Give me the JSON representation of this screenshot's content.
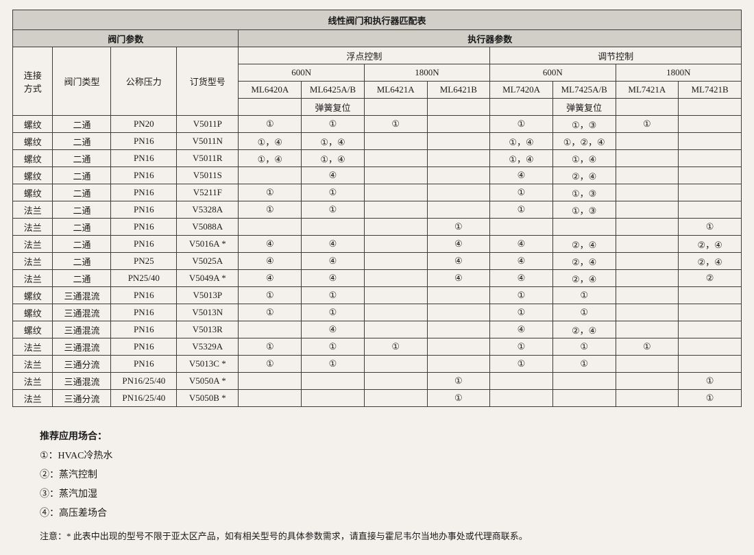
{
  "table": {
    "title": "线性阀门和执行器匹配表",
    "group_left": "阀门参数",
    "group_right": "执行器参数",
    "col_conn": "连接\n方式",
    "col_type": "阀门类型",
    "col_pn": "公称压力",
    "col_order": "订货型号",
    "ctrl_float": "浮点控制",
    "ctrl_mod": "调节控制",
    "n600": "600N",
    "n1800": "1800N",
    "m0": "ML6420A",
    "m1": "ML6425A/B",
    "m2": "ML6421A",
    "m3": "ML6421B",
    "m4": "ML7420A",
    "m5": "ML7425A/B",
    "m6": "ML7421A",
    "m7": "ML7421B",
    "spring": "弹簧复位",
    "rows": [
      {
        "c0": "螺纹",
        "c1": "二通",
        "c2": "PN20",
        "c3": "V5011P",
        "d": [
          "①",
          "①",
          "①",
          "",
          "①",
          "①，③",
          "①",
          ""
        ]
      },
      {
        "c0": "螺纹",
        "c1": "二通",
        "c2": "PN16",
        "c3": "V5011N",
        "d": [
          "①，④",
          "①，④",
          "",
          "",
          "①，④",
          "①，②，④",
          "",
          ""
        ]
      },
      {
        "c0": "螺纹",
        "c1": "二通",
        "c2": "PN16",
        "c3": "V5011R",
        "d": [
          "①，④",
          "①，④",
          "",
          "",
          "①，④",
          "①，④",
          "",
          ""
        ]
      },
      {
        "c0": "螺纹",
        "c1": "二通",
        "c2": "PN16",
        "c3": "V5011S",
        "d": [
          "",
          "④",
          "",
          "",
          "④",
          "②，④",
          "",
          ""
        ]
      },
      {
        "c0": "螺纹",
        "c1": "二通",
        "c2": "PN16",
        "c3": "V5211F",
        "d": [
          "①",
          "①",
          "",
          "",
          "①",
          "①，③",
          "",
          ""
        ]
      },
      {
        "c0": "法兰",
        "c1": "二通",
        "c2": "PN16",
        "c3": "V5328A",
        "d": [
          "①",
          "①",
          "",
          "",
          "①",
          "①，③",
          "",
          ""
        ]
      },
      {
        "c0": "法兰",
        "c1": "二通",
        "c2": "PN16",
        "c3": "V5088A",
        "d": [
          "",
          "",
          "",
          "①",
          "",
          "",
          "",
          "①"
        ]
      },
      {
        "c0": "法兰",
        "c1": "二通",
        "c2": "PN16",
        "c3": "V5016A *",
        "d": [
          "④",
          "④",
          "",
          "④",
          "④",
          "②，④",
          "",
          "②，④"
        ]
      },
      {
        "c0": "法兰",
        "c1": "二通",
        "c2": "PN25",
        "c3": "V5025A",
        "d": [
          "④",
          "④",
          "",
          "④",
          "④",
          "②，④",
          "",
          "②，④"
        ]
      },
      {
        "c0": "法兰",
        "c1": "二通",
        "c2": "PN25/40",
        "c3": "V5049A *",
        "d": [
          "④",
          "④",
          "",
          "④",
          "④",
          "②，④",
          "",
          "②"
        ]
      },
      {
        "c0": "螺纹",
        "c1": "三通混流",
        "c2": "PN16",
        "c3": "V5013P",
        "d": [
          "①",
          "①",
          "",
          "",
          "①",
          "①",
          "",
          ""
        ]
      },
      {
        "c0": "螺纹",
        "c1": "三通混流",
        "c2": "PN16",
        "c3": "V5013N",
        "d": [
          "①",
          "①",
          "",
          "",
          "①",
          "①",
          "",
          ""
        ]
      },
      {
        "c0": "螺纹",
        "c1": "三通混流",
        "c2": "PN16",
        "c3": "V5013R",
        "d": [
          "",
          "④",
          "",
          "",
          "④",
          "②，④",
          "",
          ""
        ]
      },
      {
        "c0": "法兰",
        "c1": "三通混流",
        "c2": "PN16",
        "c3": "V5329A",
        "d": [
          "①",
          "①",
          "①",
          "",
          "①",
          "①",
          "①",
          ""
        ]
      },
      {
        "c0": "法兰",
        "c1": "三通分流",
        "c2": "PN16",
        "c3": "V5013C *",
        "d": [
          "①",
          "①",
          "",
          "",
          "①",
          "①",
          "",
          ""
        ]
      },
      {
        "c0": "法兰",
        "c1": "三通混流",
        "c2": "PN16/25/40",
        "c3": "V5050A *",
        "d": [
          "",
          "",
          "",
          "①",
          "",
          "",
          "",
          "①"
        ]
      },
      {
        "c0": "法兰",
        "c1": "三通分流",
        "c2": "PN16/25/40",
        "c3": "V5050B *",
        "d": [
          "",
          "",
          "",
          "①",
          "",
          "",
          "",
          "①"
        ]
      }
    ]
  },
  "legend": {
    "heading": "推荐应用场合：",
    "items": [
      "①：HVAC冷热水",
      "②：蒸汽控制",
      "③：蒸汽加湿",
      "④：高压差场合"
    ],
    "note": "注意：* 此表中出现的型号不限于亚太区产品，如有相关型号的具体参数需求，请直接与霍尼韦尔当地办事处或代理商联系。"
  },
  "layout": {
    "col_widths_pct": [
      5.5,
      8,
      9,
      8.5,
      8.625,
      8.625,
      8.625,
      8.625,
      8.625,
      8.625,
      8.625,
      8.625
    ]
  }
}
